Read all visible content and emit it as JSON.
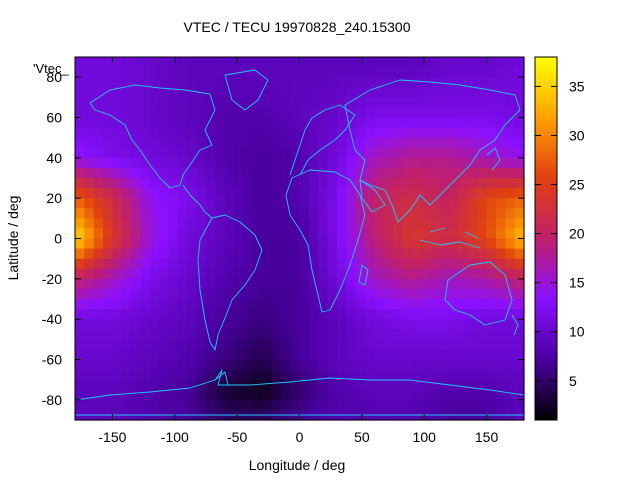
{
  "chart_data": {
    "type": "heatmap",
    "title": "VTEC / TECU 19970828_240.15300",
    "xlabel": "Longitude / deg",
    "ylabel": "Latitude / deg",
    "series_label": "'Vtec_",
    "xlim": [
      -180,
      180
    ],
    "ylim": [
      -90,
      90
    ],
    "xticks": [
      -150,
      -100,
      -50,
      0,
      50,
      100,
      150
    ],
    "yticks": [
      -80,
      -60,
      -40,
      -20,
      0,
      20,
      40,
      60,
      80
    ],
    "colorbar": {
      "range": [
        1,
        38
      ],
      "ticks": [
        5,
        10,
        15,
        20,
        25,
        30,
        35
      ],
      "palette": [
        "#000000",
        "#4a00a0",
        "#8a10ff",
        "#c0206a",
        "#e04010",
        "#ffa000",
        "#ffff00"
      ]
    },
    "lon_nodes": [
      -180,
      -150,
      -120,
      -90,
      -60,
      -30,
      0,
      30,
      60,
      90,
      120,
      150,
      180
    ],
    "lat_nodes": [
      85,
      60,
      40,
      20,
      0,
      -20,
      -40,
      -60,
      -75,
      -90
    ],
    "values": [
      [
        11,
        11,
        10,
        9,
        9,
        9,
        9,
        9,
        9,
        9,
        10,
        10,
        11
      ],
      [
        11,
        11,
        10,
        9,
        8,
        8,
        9,
        10,
        12,
        12,
        12,
        12,
        11
      ],
      [
        14,
        12,
        11,
        10,
        8,
        7,
        8,
        11,
        16,
        18,
        18,
        16,
        14
      ],
      [
        28,
        22,
        14,
        12,
        9,
        7,
        8,
        12,
        20,
        22,
        20,
        26,
        28
      ],
      [
        36,
        24,
        15,
        11,
        9,
        7,
        7,
        12,
        19,
        24,
        22,
        26,
        34
      ],
      [
        20,
        16,
        12,
        10,
        8,
        7,
        7,
        11,
        16,
        18,
        16,
        17,
        20
      ],
      [
        11,
        11,
        10,
        9,
        7,
        6,
        7,
        9,
        11,
        12,
        12,
        11,
        11
      ],
      [
        10,
        10,
        9,
        8,
        6,
        4,
        7,
        9,
        10,
        10,
        10,
        10,
        10
      ],
      [
        9,
        9,
        8,
        7,
        3,
        2,
        5,
        8,
        9,
        9,
        8,
        8,
        9
      ],
      [
        9,
        9,
        8,
        7,
        5,
        5,
        7,
        8,
        8,
        8,
        7,
        7,
        9
      ]
    ]
  }
}
